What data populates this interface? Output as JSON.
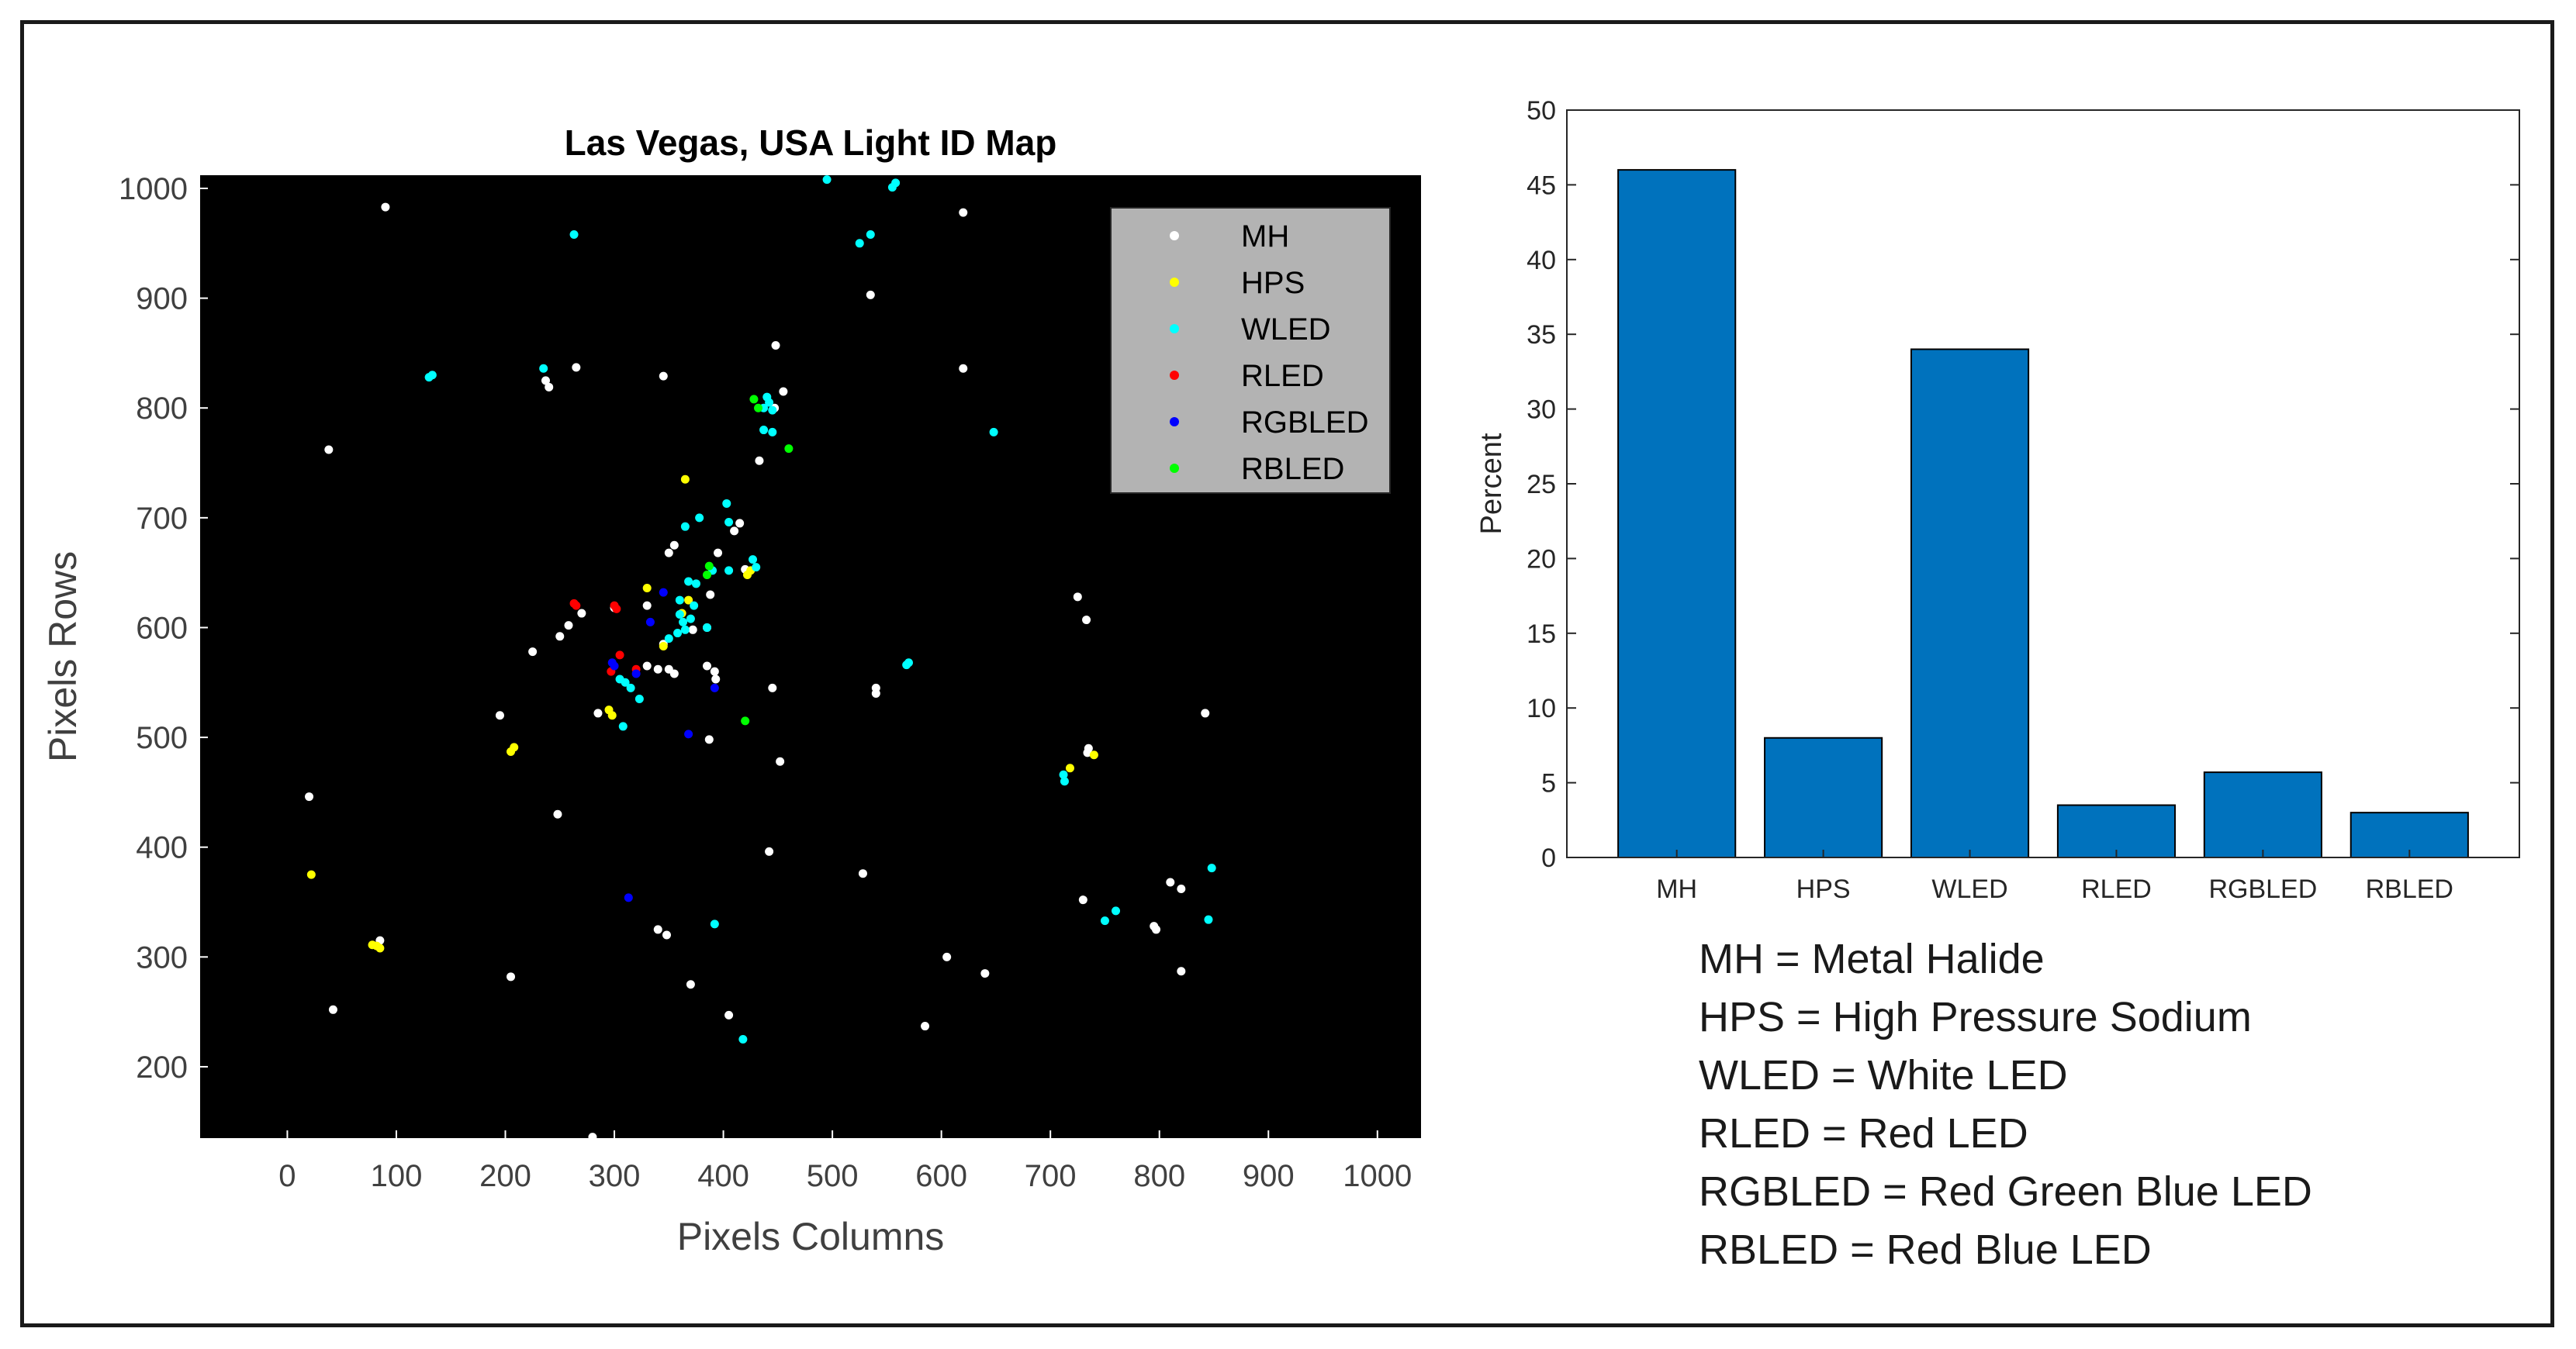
{
  "chart_data": [
    {
      "type": "scatter",
      "title": "Las Vegas, USA Light ID Map",
      "xlabel": "Pixels Columns",
      "ylabel": "Pixels Rows",
      "xlim": [
        -80,
        1040
      ],
      "ylim": [
        135,
        1012
      ],
      "xticks": [
        0,
        100,
        200,
        300,
        400,
        500,
        600,
        700,
        800,
        900,
        1000
      ],
      "yticks": [
        200,
        300,
        400,
        500,
        600,
        700,
        800,
        900,
        1000
      ],
      "background": "#000000",
      "legend": {
        "position": "top-right",
        "background": "#b3b3b3"
      },
      "series": [
        {
          "name": "MH",
          "color": "#ffffff",
          "points": [
            [
              90,
              983
            ],
            [
              620,
              978
            ],
            [
              535,
              903
            ],
            [
              448,
              857
            ],
            [
              620,
              836
            ],
            [
              265,
              837
            ],
            [
              345,
              829
            ],
            [
              237,
              825
            ],
            [
              240,
              819
            ],
            [
              455,
              815
            ],
            [
              447,
              800
            ],
            [
              38,
              762
            ],
            [
              433,
              752
            ],
            [
              415,
              695
            ],
            [
              410,
              688
            ],
            [
              355,
              675
            ],
            [
              350,
              668
            ],
            [
              395,
              668
            ],
            [
              420,
              653
            ],
            [
              388,
              630
            ],
            [
              330,
              620
            ],
            [
              270,
              613
            ],
            [
              300,
              618
            ],
            [
              725,
              628
            ],
            [
              733,
              607
            ],
            [
              258,
              602
            ],
            [
              250,
              592
            ],
            [
              385,
              600
            ],
            [
              372,
              598
            ],
            [
              225,
              578
            ],
            [
              345,
              585
            ],
            [
              330,
              565
            ],
            [
              340,
              562
            ],
            [
              350,
              562
            ],
            [
              385,
              565
            ],
            [
              392,
              560
            ],
            [
              393,
              553
            ],
            [
              355,
              558
            ],
            [
              445,
              545
            ],
            [
              540,
              545
            ],
            [
              540,
              540
            ],
            [
              195,
              520
            ],
            [
              285,
              522
            ],
            [
              387,
              498
            ],
            [
              735,
              490
            ],
            [
              734,
              486
            ],
            [
              452,
              478
            ],
            [
              842,
              522
            ],
            [
              20,
              446
            ],
            [
              248,
              430
            ],
            [
              442,
              396
            ],
            [
              528,
              376
            ],
            [
              730,
              352
            ],
            [
              810,
              368
            ],
            [
              820,
              362
            ],
            [
              340,
              325
            ],
            [
              348,
              320
            ],
            [
              795,
              328
            ],
            [
              797,
              325
            ],
            [
              85,
              315
            ],
            [
              605,
              300
            ],
            [
              640,
              285
            ],
            [
              820,
              287
            ],
            [
              205,
              282
            ],
            [
              370,
              275
            ],
            [
              42,
              252
            ],
            [
              405,
              247
            ],
            [
              585,
              237
            ],
            [
              280,
              136
            ]
          ]
        },
        {
          "name": "HPS",
          "color": "#ffff00",
          "points": [
            [
              365,
              735
            ],
            [
              422,
              648
            ],
            [
              425,
              652
            ],
            [
              330,
              636
            ],
            [
              368,
              625
            ],
            [
              362,
              613
            ],
            [
              345,
              583
            ],
            [
              295,
              525
            ],
            [
              298,
              520
            ],
            [
              208,
              491
            ],
            [
              205,
              487
            ],
            [
              718,
              472
            ],
            [
              740,
              484
            ],
            [
              22,
              375
            ],
            [
              78,
              311
            ],
            [
              82,
              310
            ],
            [
              85,
              308
            ]
          ]
        },
        {
          "name": "WLED",
          "color": "#00ffff",
          "points": [
            [
              495,
              1008
            ],
            [
              558,
              1005
            ],
            [
              555,
              1001
            ],
            [
              263,
              958
            ],
            [
              535,
              958
            ],
            [
              525,
              950
            ],
            [
              133,
              830
            ],
            [
              130,
              828
            ],
            [
              235,
              836
            ],
            [
              440,
              810
            ],
            [
              442,
              805
            ],
            [
              437,
              800
            ],
            [
              445,
              798
            ],
            [
              437,
              780
            ],
            [
              445,
              778
            ],
            [
              648,
              778
            ],
            [
              378,
              700
            ],
            [
              403,
              713
            ],
            [
              365,
              692
            ],
            [
              405,
              696
            ],
            [
              427,
              662
            ],
            [
              430,
              655
            ],
            [
              405,
              652
            ],
            [
              390,
              652
            ],
            [
              368,
              642
            ],
            [
              375,
              640
            ],
            [
              360,
              625
            ],
            [
              373,
              620
            ],
            [
              360,
              612
            ],
            [
              363,
              605
            ],
            [
              370,
              608
            ],
            [
              365,
              598
            ],
            [
              358,
              595
            ],
            [
              350,
              590
            ],
            [
              385,
              600
            ],
            [
              570,
              568
            ],
            [
              568,
              566
            ],
            [
              305,
              553
            ],
            [
              310,
              550
            ],
            [
              315,
              545
            ],
            [
              323,
              535
            ],
            [
              308,
              510
            ],
            [
              712,
              466
            ],
            [
              713,
              460
            ],
            [
              760,
              342
            ],
            [
              750,
              333
            ],
            [
              392,
              330
            ],
            [
              848,
              381
            ],
            [
              845,
              334
            ],
            [
              418,
              225
            ]
          ]
        },
        {
          "name": "RLED",
          "color": "#ff0000",
          "points": [
            [
              263,
              622
            ],
            [
              265,
              620
            ],
            [
              300,
              620
            ],
            [
              302,
              617
            ],
            [
              305,
              575
            ],
            [
              320,
              562
            ],
            [
              297,
              560
            ]
          ]
        },
        {
          "name": "RGBLED",
          "color": "#0000ff",
          "points": [
            [
              345,
              632
            ],
            [
              333,
              605
            ],
            [
              298,
              568
            ],
            [
              300,
              565
            ],
            [
              320,
              558
            ],
            [
              368,
              503
            ],
            [
              392,
              545
            ],
            [
              313,
              354
            ]
          ]
        },
        {
          "name": "RBLED",
          "color": "#00ff00",
          "points": [
            [
              428,
              808
            ],
            [
              432,
              800
            ],
            [
              460,
              763
            ],
            [
              387,
              656
            ],
            [
              385,
              648
            ],
            [
              420,
              515
            ]
          ]
        }
      ]
    },
    {
      "type": "bar",
      "title": "",
      "categories": [
        "MH",
        "HPS",
        "WLED",
        "RLED",
        "RGBLED",
        "RBLED"
      ],
      "values": [
        46,
        8,
        34,
        3.5,
        5.7,
        3
      ],
      "ylabel": "Percent",
      "xlabel": "",
      "ylim": [
        0,
        50
      ],
      "yticks": [
        0,
        5,
        10,
        15,
        20,
        25,
        30,
        35,
        40,
        45,
        50
      ],
      "color": "#0072bd"
    }
  ],
  "abbreviations": [
    "MH = Metal Halide",
    "HPS = High Pressure Sodium",
    "WLED = White LED",
    "RLED = Red LED",
    "RGBLED = Red Green Blue LED",
    "RBLED = Red Blue LED"
  ]
}
